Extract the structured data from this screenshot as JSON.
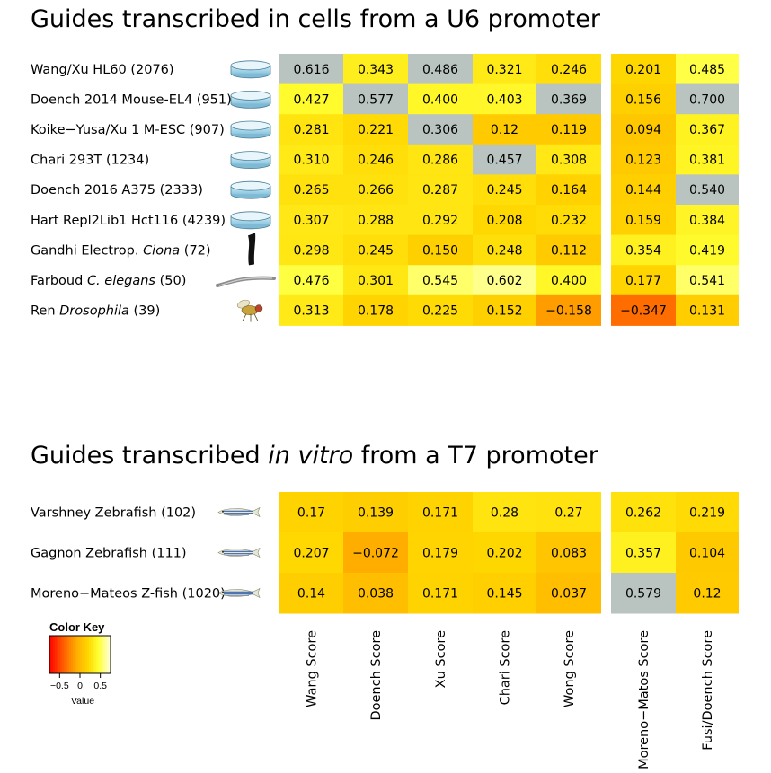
{
  "chart_data": [
    {
      "type": "heatmap",
      "title": "Guides transcribed in cells from a U6 promoter",
      "title_parts": [
        {
          "text": "Guides transcribed in cells from a U6 promoter",
          "italic": false
        }
      ],
      "rows": [
        {
          "label": "Wang/Xu HL60 (2076)",
          "parts": [
            {
              "text": "Wang/Xu HL60 (2076)",
              "italic": false
            }
          ],
          "icon": "petri-dish-icon"
        },
        {
          "label": "Doench 2014 Mouse-EL4 (951)",
          "parts": [
            {
              "text": "Doench 2014 Mouse-EL4 (951)",
              "italic": false
            }
          ],
          "icon": "petri-dish-icon"
        },
        {
          "label": "Koike−Yusa/Xu 1 M-ESC (907)",
          "parts": [
            {
              "text": "Koike−Yusa/Xu 1 M-ESC (907)",
              "italic": false
            }
          ],
          "icon": "petri-dish-icon"
        },
        {
          "label": "Chari 293T (1234)",
          "parts": [
            {
              "text": "Chari 293T (1234)",
              "italic": false
            }
          ],
          "icon": "petri-dish-icon"
        },
        {
          "label": "Doench 2016 A375 (2333)",
          "parts": [
            {
              "text": "Doench 2016 A375 (2333)",
              "italic": false
            }
          ],
          "icon": "petri-dish-icon"
        },
        {
          "label": "Hart Repl2Lib1 Hct116 (4239)",
          "parts": [
            {
              "text": "Hart Repl2Lib1 Hct116 (4239)",
              "italic": false
            }
          ],
          "icon": "petri-dish-icon"
        },
        {
          "label": "Gandhi Electrop. Ciona (72)",
          "parts": [
            {
              "text": "Gandhi Electrop. ",
              "italic": false
            },
            {
              "text": "Ciona",
              "italic": true
            },
            {
              "text": " (72)",
              "italic": false
            }
          ],
          "icon": "ciona-icon"
        },
        {
          "label": "Farboud C. elegans (50)",
          "parts": [
            {
              "text": "Farboud ",
              "italic": false
            },
            {
              "text": "C. elegans",
              "italic": true
            },
            {
              "text": " (50)",
              "italic": false
            }
          ],
          "icon": "worm-icon"
        },
        {
          "label": "Ren Drosophila (39)",
          "parts": [
            {
              "text": "Ren ",
              "italic": false
            },
            {
              "text": "Drosophila",
              "italic": true
            },
            {
              "text": " (39)",
              "italic": false
            }
          ],
          "icon": "fly-icon"
        }
      ],
      "columns": [
        "Wang Score",
        "Doench Score",
        "Xu Score",
        "Chari Score",
        "Wong Score",
        "Moreno−Matos Score",
        "Fusi/Doench Score"
      ],
      "values": [
        [
          "0.616",
          "0.343",
          "0.486",
          "0.321",
          "0.246",
          "0.201",
          "0.485"
        ],
        [
          "0.427",
          "0.577",
          "0.400",
          "0.403",
          "0.369",
          "0.156",
          "0.700"
        ],
        [
          "0.281",
          "0.221",
          "0.306",
          "0.12",
          "0.119",
          "0.094",
          "0.367"
        ],
        [
          "0.310",
          "0.246",
          "0.286",
          "0.457",
          "0.308",
          "0.123",
          "0.381"
        ],
        [
          "0.265",
          "0.266",
          "0.287",
          "0.245",
          "0.164",
          "0.144",
          "0.540"
        ],
        [
          "0.307",
          "0.288",
          "0.292",
          "0.208",
          "0.232",
          "0.159",
          "0.384"
        ],
        [
          "0.298",
          "0.245",
          "0.150",
          "0.248",
          "0.112",
          "0.354",
          "0.419"
        ],
        [
          "0.476",
          "0.301",
          "0.545",
          "0.602",
          "0.400",
          "0.177",
          "0.541"
        ],
        [
          "0.313",
          "0.178",
          "0.225",
          "0.152",
          "−0.158",
          "−0.347",
          "0.131"
        ]
      ],
      "gray_cells": [
        [
          0,
          0
        ],
        [
          0,
          2
        ],
        [
          1,
          1
        ],
        [
          1,
          4
        ],
        [
          1,
          6
        ],
        [
          2,
          2
        ],
        [
          3,
          3
        ],
        [
          4,
          6
        ]
      ]
    },
    {
      "type": "heatmap",
      "title": "Guides transcribed in vitro from a T7 promoter",
      "title_parts": [
        {
          "text": "Guides transcribed ",
          "italic": false
        },
        {
          "text": "in vitro",
          "italic": true
        },
        {
          "text": " from a T7 promoter",
          "italic": false
        }
      ],
      "rows": [
        {
          "label": "Varshney Zebrafish (102)",
          "parts": [
            {
              "text": "Varshney Zebrafish (102)",
              "italic": false
            }
          ],
          "icon": "zebrafish-icon"
        },
        {
          "label": "Gagnon Zebrafish (111)",
          "parts": [
            {
              "text": "Gagnon Zebrafish (111)",
              "italic": false
            }
          ],
          "icon": "zebrafish-icon"
        },
        {
          "label": "Moreno−Mateos Z-fish (1020)",
          "parts": [
            {
              "text": "Moreno−Mateos Z-fish (1020)",
              "italic": false
            }
          ],
          "icon": "zebrafish-icon"
        }
      ],
      "columns": [
        "Wang Score",
        "Doench Score",
        "Xu Score",
        "Chari Score",
        "Wong Score",
        "Moreno−Matos Score",
        "Fusi/Doench Score"
      ],
      "values": [
        [
          "0.17",
          "0.139",
          "0.171",
          "0.28",
          "0.27",
          "0.262",
          "0.219"
        ],
        [
          "0.207",
          "−0.072",
          "0.179",
          "0.202",
          "0.083",
          "0.357",
          "0.104"
        ],
        [
          "0.14",
          "0.038",
          "0.171",
          "0.145",
          "0.037",
          "0.579",
          "0.12"
        ]
      ],
      "gray_cells": [
        [
          2,
          5
        ]
      ]
    }
  ],
  "color_key": {
    "title": "Color Key",
    "ticks": [
      "−0.5",
      "0",
      "0.5"
    ],
    "tick_values": [
      -0.5,
      0,
      0.5
    ],
    "range": [
      -0.75,
      0.75
    ],
    "xlabel": "Value",
    "colors": [
      "#ff0000",
      "#ff8000",
      "#ffd700",
      "#ffff66",
      "#ffffe0"
    ]
  },
  "colors": {
    "diagonal_gray": "#b9c3bf",
    "background": "#ffffff"
  }
}
